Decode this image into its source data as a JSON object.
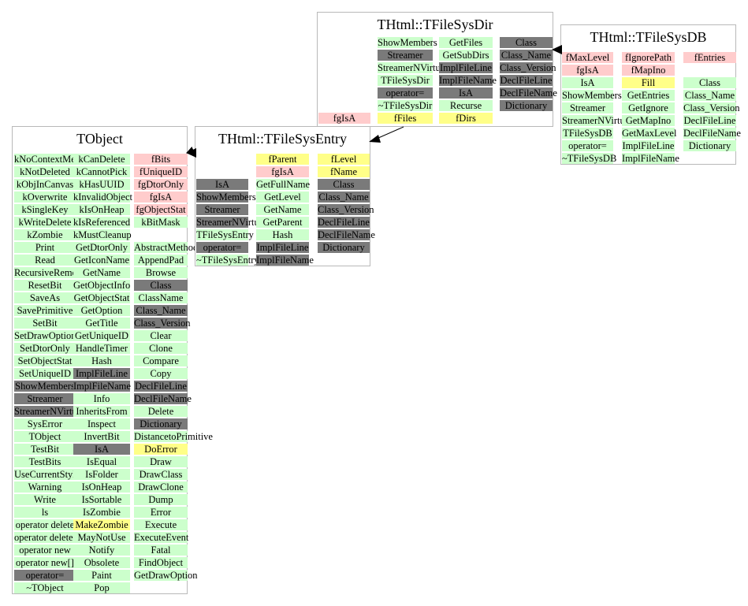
{
  "colors": {
    "method": "#ccffcc",
    "member": "#ffcccc",
    "highlight": "#ffff88",
    "inherited": "#7a7a7a",
    "border": "#b9b9b9"
  },
  "classes": [
    {
      "id": "tobject",
      "title": "TObject",
      "columns": [
        [
          [
            "kNoContextMenu",
            "g"
          ],
          [
            "kNotDeleted",
            "g"
          ],
          [
            "kObjInCanvas",
            "g"
          ],
          [
            "kOverwrite",
            "g"
          ],
          [
            "kSingleKey",
            "g"
          ],
          [
            "kWriteDelete",
            "g"
          ],
          [
            "kZombie",
            "g"
          ],
          [
            "Print",
            "g"
          ],
          [
            "Read",
            "g"
          ],
          [
            "RecursiveRemove",
            "g"
          ],
          [
            "ResetBit",
            "g"
          ],
          [
            "SaveAs",
            "g"
          ],
          [
            "SavePrimitive",
            "g"
          ],
          [
            "SetBit",
            "g"
          ],
          [
            "SetDrawOption",
            "g"
          ],
          [
            "SetDtorOnly",
            "g"
          ],
          [
            "SetObjectStat",
            "g"
          ],
          [
            "SetUniqueID",
            "g"
          ],
          [
            "ShowMembers",
            "d"
          ],
          [
            "Streamer",
            "d"
          ],
          [
            "StreamerNVirtual",
            "d"
          ],
          [
            "SysError",
            "g"
          ],
          [
            "TObject",
            "g"
          ],
          [
            "TestBit",
            "g"
          ],
          [
            "TestBits",
            "g"
          ],
          [
            "UseCurrentStyle",
            "g"
          ],
          [
            "Warning",
            "g"
          ],
          [
            "Write",
            "g"
          ],
          [
            "ls",
            "g"
          ],
          [
            "operator delete",
            "g"
          ],
          [
            "operator delete[]",
            "g"
          ],
          [
            "operator new",
            "g"
          ],
          [
            "operator new[]",
            "g"
          ],
          [
            "operator=",
            "d"
          ],
          [
            "~TObject",
            "g"
          ]
        ],
        [
          [
            "kCanDelete",
            "g"
          ],
          [
            "kCannotPick",
            "g"
          ],
          [
            "kHasUUID",
            "g"
          ],
          [
            "kInvalidObject",
            "g"
          ],
          [
            "kIsOnHeap",
            "g"
          ],
          [
            "kIsReferenced",
            "g"
          ],
          [
            "kMustCleanup",
            "g"
          ],
          [
            "GetDtorOnly",
            "g"
          ],
          [
            "GetIconName",
            "g"
          ],
          [
            "GetName",
            "g"
          ],
          [
            "GetObjectInfo",
            "g"
          ],
          [
            "GetObjectStat",
            "g"
          ],
          [
            "GetOption",
            "g"
          ],
          [
            "GetTitle",
            "g"
          ],
          [
            "GetUniqueID",
            "g"
          ],
          [
            "HandleTimer",
            "g"
          ],
          [
            "Hash",
            "g"
          ],
          [
            "ImplFileLine",
            "d"
          ],
          [
            "ImplFileName",
            "d"
          ],
          [
            "Info",
            "g"
          ],
          [
            "InheritsFrom",
            "g"
          ],
          [
            "Inspect",
            "g"
          ],
          [
            "InvertBit",
            "g"
          ],
          [
            "IsA",
            "d"
          ],
          [
            "IsEqual",
            "g"
          ],
          [
            "IsFolder",
            "g"
          ],
          [
            "IsOnHeap",
            "g"
          ],
          [
            "IsSortable",
            "g"
          ],
          [
            "IsZombie",
            "g"
          ],
          [
            "MakeZombie",
            "y"
          ],
          [
            "MayNotUse",
            "g"
          ],
          [
            "Notify",
            "g"
          ],
          [
            "Obsolete",
            "g"
          ],
          [
            "Paint",
            "g"
          ],
          [
            "Pop",
            "g"
          ]
        ],
        [
          [
            "fBits",
            "p"
          ],
          [
            "fUniqueID",
            "p"
          ],
          [
            "fgDtorOnly",
            "p"
          ],
          [
            "fgIsA",
            "p"
          ],
          [
            "fgObjectStat",
            "p"
          ],
          [
            "kBitMask",
            "g"
          ],
          [
            "",
            "e"
          ],
          [
            "AbstractMethod",
            "g"
          ],
          [
            "AppendPad",
            "g"
          ],
          [
            "Browse",
            "g"
          ],
          [
            "Class",
            "d"
          ],
          [
            "ClassName",
            "g"
          ],
          [
            "Class_Name",
            "d"
          ],
          [
            "Class_Version",
            "d"
          ],
          [
            "Clear",
            "g"
          ],
          [
            "Clone",
            "g"
          ],
          [
            "Compare",
            "g"
          ],
          [
            "Copy",
            "g"
          ],
          [
            "DeclFileLine",
            "d"
          ],
          [
            "DeclFileName",
            "d"
          ],
          [
            "Delete",
            "g"
          ],
          [
            "Dictionary",
            "d"
          ],
          [
            "DistancetoPrimitive",
            "g"
          ],
          [
            "DoError",
            "y"
          ],
          [
            "Draw",
            "g"
          ],
          [
            "DrawClass",
            "g"
          ],
          [
            "DrawClone",
            "g"
          ],
          [
            "Dump",
            "g"
          ],
          [
            "Error",
            "g"
          ],
          [
            "Execute",
            "g"
          ],
          [
            "ExecuteEvent",
            "g"
          ],
          [
            "Fatal",
            "g"
          ],
          [
            "FindObject",
            "g"
          ],
          [
            "GetDrawOption",
            "g"
          ]
        ]
      ]
    },
    {
      "id": "tfilesysentry",
      "title": "THtml::TFileSysEntry",
      "columns": [
        [
          [
            "",
            "e"
          ],
          [
            "",
            "e"
          ],
          [
            "IsA",
            "d"
          ],
          [
            "ShowMembers",
            "d"
          ],
          [
            "Streamer",
            "d"
          ],
          [
            "StreamerNVirtual",
            "d"
          ],
          [
            "TFileSysEntry",
            "g"
          ],
          [
            "operator=",
            "d"
          ],
          [
            "~TFileSysEntry",
            "g"
          ]
        ],
        [
          [
            "fParent",
            "y"
          ],
          [
            "fgIsA",
            "p"
          ],
          [
            "GetFullName",
            "g"
          ],
          [
            "GetLevel",
            "g"
          ],
          [
            "GetName",
            "g"
          ],
          [
            "GetParent",
            "g"
          ],
          [
            "Hash",
            "g"
          ],
          [
            "ImplFileLine",
            "d"
          ],
          [
            "ImplFileName",
            "d"
          ]
        ],
        [
          [
            "fLevel",
            "y"
          ],
          [
            "fName",
            "y"
          ],
          [
            "Class",
            "d"
          ],
          [
            "Class_Name",
            "d"
          ],
          [
            "Class_Version",
            "d"
          ],
          [
            "DeclFileLine",
            "d"
          ],
          [
            "DeclFileName",
            "d"
          ],
          [
            "Dictionary",
            "d"
          ]
        ]
      ]
    },
    {
      "id": "tfilesysdir",
      "title": "THtml::TFileSysDir",
      "columns": [
        [
          [
            "ShowMembers",
            "g"
          ],
          [
            "Streamer",
            "d"
          ],
          [
            "StreamerNVirtual",
            "g"
          ],
          [
            "TFileSysDir",
            "g"
          ],
          [
            "operator=",
            "d"
          ],
          [
            "~TFileSysDir",
            "g"
          ]
        ],
        [
          [
            "GetFiles",
            "g"
          ],
          [
            "GetSubDirs",
            "g"
          ],
          [
            "ImplFileLine",
            "d"
          ],
          [
            "ImplFileName",
            "d"
          ],
          [
            "IsA",
            "d"
          ],
          [
            "Recurse",
            "g"
          ]
        ],
        [
          [
            "Class",
            "d"
          ],
          [
            "Class_Name",
            "d"
          ],
          [
            "Class_Version",
            "d"
          ],
          [
            "DeclFileLine",
            "d"
          ],
          [
            "DeclFileName",
            "d"
          ],
          [
            "Dictionary",
            "d"
          ]
        ],
        [
          [
            "fgIsA",
            "p"
          ]
        ],
        [
          [
            "fFiles",
            "y"
          ]
        ],
        [
          [
            "fDirs",
            "y"
          ]
        ]
      ]
    },
    {
      "id": "tfilesysdb",
      "title": "THtml::TFileSysDB",
      "columns": [
        [
          [
            "fMaxLevel",
            "p"
          ],
          [
            "fgIsA",
            "p"
          ],
          [
            "IsA",
            "g"
          ],
          [
            "ShowMembers",
            "g"
          ],
          [
            "Streamer",
            "g"
          ],
          [
            "StreamerNVirtual",
            "g"
          ],
          [
            "TFileSysDB",
            "g"
          ],
          [
            "operator=",
            "g"
          ],
          [
            "~TFileSysDB",
            "g"
          ]
        ],
        [
          [
            "fIgnorePath",
            "p"
          ],
          [
            "fMapIno",
            "p"
          ],
          [
            "Fill",
            "y"
          ],
          [
            "GetEntries",
            "g"
          ],
          [
            "GetIgnore",
            "g"
          ],
          [
            "GetMapIno",
            "g"
          ],
          [
            "GetMaxLevel",
            "g"
          ],
          [
            "ImplFileLine",
            "g"
          ],
          [
            "ImplFileName",
            "g"
          ]
        ],
        [
          [
            "fEntries",
            "p"
          ],
          [
            "",
            "e"
          ],
          [
            "Class",
            "g"
          ],
          [
            "Class_Name",
            "g"
          ],
          [
            "Class_Version",
            "g"
          ],
          [
            "DeclFileLine",
            "g"
          ],
          [
            "DeclFileName",
            "g"
          ],
          [
            "Dictionary",
            "g"
          ]
        ]
      ]
    }
  ]
}
